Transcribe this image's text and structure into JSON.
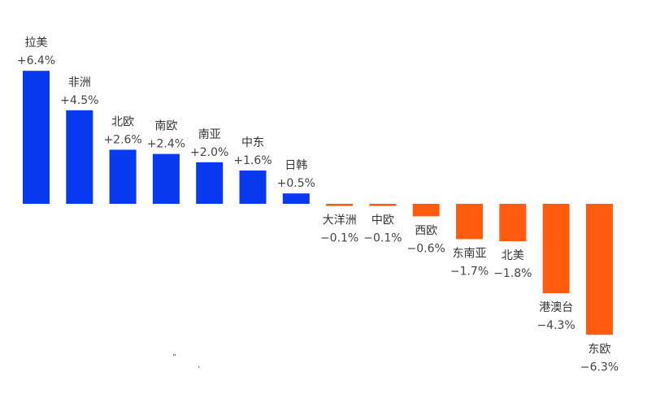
{
  "chart_data": {
    "type": "bar",
    "title": "",
    "xlabel": "",
    "ylabel": "",
    "categories": [
      "拉美",
      "非洲",
      "北欧",
      "南欧",
      "南亚",
      "中东",
      "日韩",
      "大洋洲",
      "中欧",
      "西欧",
      "东南亚",
      "北美",
      "港澳台",
      "东欧"
    ],
    "values": [
      6.4,
      4.5,
      2.6,
      2.4,
      2.0,
      1.6,
      0.5,
      -0.1,
      -0.1,
      -0.6,
      -1.7,
      -1.8,
      -4.3,
      -6.3
    ],
    "value_labels": [
      "+6.4%",
      "+4.5%",
      "+2.6%",
      "+2.4%",
      "+2.0%",
      "+1.6%",
      "+0.5%",
      "−0.1%",
      "−0.1%",
      "−0.6%",
      "−1.7%",
      "−1.8%",
      "−4.3%",
      "−6.3%"
    ],
    "ylim": [
      -6.3,
      6.4
    ],
    "grid": false,
    "legend": "none",
    "colors": {
      "positive": "#0a3af0",
      "negative": "#ff5c0f"
    }
  },
  "stray_marks": [
    "”",
    "’"
  ]
}
